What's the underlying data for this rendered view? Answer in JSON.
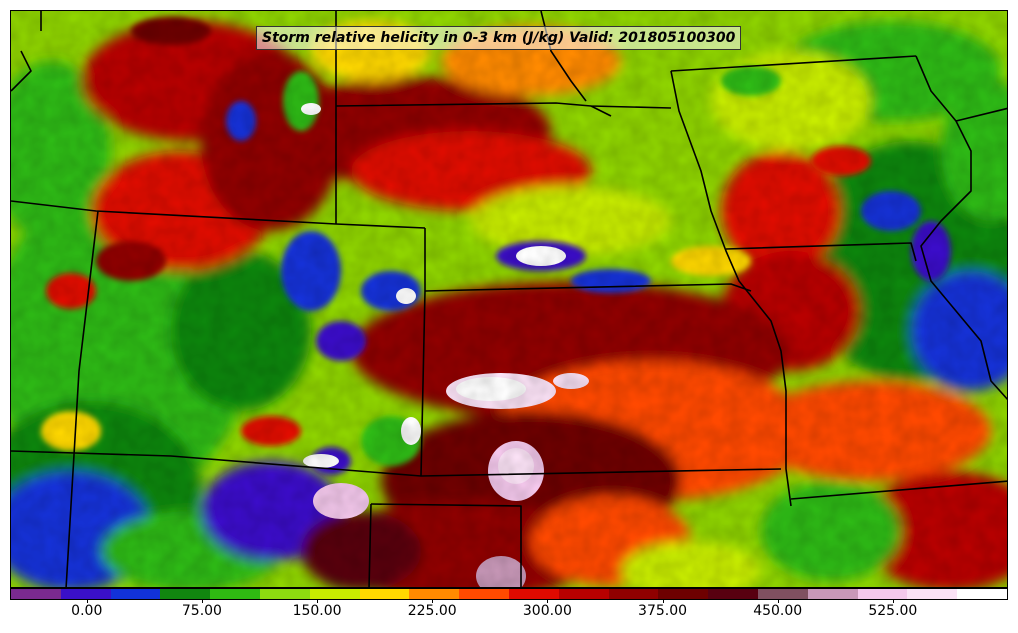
{
  "title": "Storm relative helicity in 0-3 km (J/kg) Valid: 201805100300",
  "colorbar": {
    "colors": [
      "#7a2a8f",
      "#3a10c8",
      "#1232d8",
      "#11860f",
      "#2fba12",
      "#8ddb10",
      "#c8ec00",
      "#ffd800",
      "#ff8a00",
      "#ff4a00",
      "#e00a00",
      "#b80000",
      "#900000",
      "#6e0000",
      "#580010",
      "#805060",
      "#c898b8",
      "#f4c8ec",
      "#fbe2f6",
      "#ffffff"
    ],
    "tick_labels": [
      "0.00",
      "75.00",
      "150.00",
      "225.00",
      "300.00",
      "375.00",
      "450.00",
      "525.00"
    ],
    "tick_values": [
      0,
      75,
      150,
      225,
      300,
      375,
      450,
      525
    ],
    "range": [
      -50,
      600
    ]
  }
}
